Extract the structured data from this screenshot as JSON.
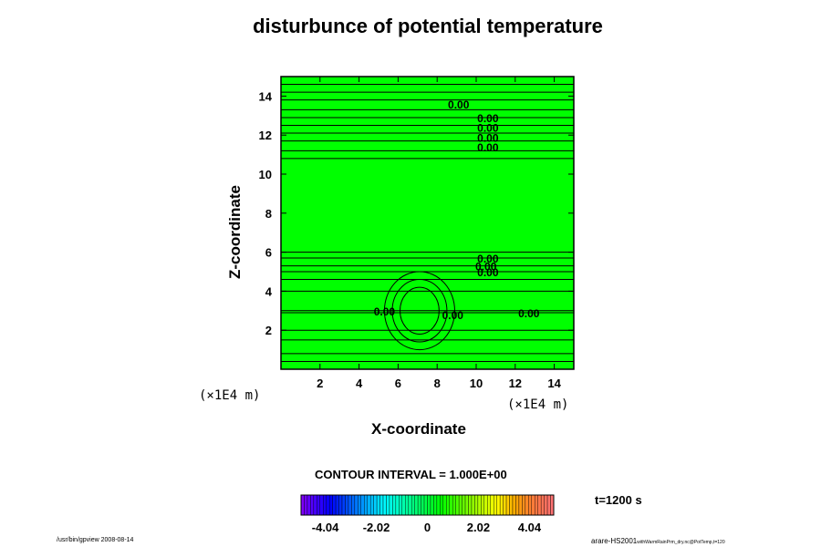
{
  "chart_data": {
    "type": "contour",
    "title": "disturbunce of potential temperature",
    "xlabel": "X-coordinate",
    "ylabel": "Z-coordinate",
    "x_unit_label": "(×1E4 m)",
    "y_unit_label": "(×1E4 m)",
    "xlim": [
      0,
      15
    ],
    "ylim": [
      0,
      15
    ],
    "xticks": [
      2,
      4,
      6,
      8,
      10,
      12,
      14
    ],
    "yticks": [
      2,
      4,
      6,
      8,
      10,
      12,
      14
    ],
    "fill_color": "#00ff00",
    "contour_labels": [
      {
        "text": "0.00",
        "x": 9.1,
        "z": 13.6
      },
      {
        "text": "0.00",
        "x": 10.6,
        "z": 12.9
      },
      {
        "text": "0.00",
        "x": 10.6,
        "z": 12.4
      },
      {
        "text": "0.00",
        "x": 10.6,
        "z": 11.9
      },
      {
        "text": "0.00",
        "x": 10.6,
        "z": 11.4
      },
      {
        "text": "0.00",
        "x": 10.6,
        "z": 5.7
      },
      {
        "text": "0.00",
        "x": 10.5,
        "z": 5.3
      },
      {
        "text": "0.00",
        "x": 10.6,
        "z": 5.0
      },
      {
        "text": "0.00",
        "x": 12.7,
        "z": 2.9
      },
      {
        "text": "0.00",
        "x": 5.3,
        "z": 3.0
      },
      {
        "text": "0.00",
        "x": 8.8,
        "z": 2.8
      }
    ],
    "contour_interval_text": "CONTOUR INTERVAL = 1.000E+00",
    "colorbar": {
      "range": [
        -5,
        5
      ],
      "tick_values": [
        -4.04,
        -2.02,
        0,
        2.02,
        4.04
      ],
      "tick_labels": [
        "-4.04",
        "-2.02",
        "0",
        "2.02",
        "4.04"
      ]
    },
    "time_label": "t=1200 s"
  },
  "footer": {
    "left": "/usr/bin/gpview 2008-08-14",
    "right_main": "arare-HS2001",
    "right_sub": "withWarmRainPrm_dry.nc@PotTemp,t=120"
  }
}
